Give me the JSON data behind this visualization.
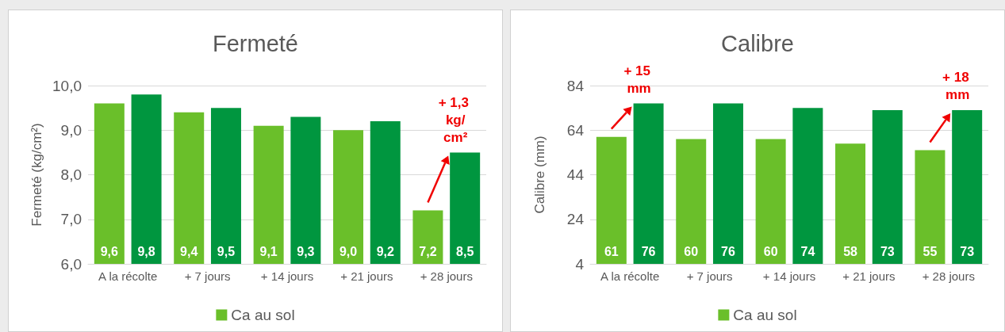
{
  "chart_data": [
    {
      "type": "bar",
      "title": "Fermeté",
      "ylabel": "Fermeté (kg/cm²)",
      "categories": [
        "A la récolte",
        "+ 7 jours",
        "+ 14 jours",
        "+ 21 jours",
        "+ 28 jours"
      ],
      "series": [
        {
          "name": "Ca au sol",
          "color": "#6abf2a",
          "values": [
            9.6,
            9.4,
            9.1,
            9.0,
            7.2
          ],
          "value_labels": [
            "9,6",
            "9,4",
            "9,1",
            "9,0",
            "7,2"
          ]
        },
        {
          "color": "#00963f",
          "values": [
            9.8,
            9.5,
            9.3,
            9.2,
            8.5
          ],
          "value_labels": [
            "9,8",
            "9,5",
            "9,3",
            "9,2",
            "8,5"
          ]
        }
      ],
      "ylim": [
        6,
        10
      ],
      "yticks": [
        {
          "value": 6,
          "label": "6,0"
        },
        {
          "value": 7,
          "label": "7,0"
        },
        {
          "value": 8,
          "label": "8,0"
        },
        {
          "value": 9,
          "label": "9,0"
        },
        {
          "value": 10,
          "label": "10,0"
        }
      ],
      "grid": "y",
      "legend": "bottom",
      "annotations": [
        "+ 1,3 kg/cm²"
      ]
    },
    {
      "type": "bar",
      "title": "Calibre",
      "ylabel": "Calibre (mm)",
      "categories": [
        "A la récolte",
        "+ 7 jours",
        "+ 14 jours",
        "+ 21 jours",
        "+ 28 jours"
      ],
      "series": [
        {
          "name": "Ca au sol",
          "color": "#6abf2a",
          "values": [
            61,
            60,
            60,
            58,
            55
          ]
        },
        {
          "color": "#00963f",
          "values": [
            76,
            76,
            74,
            73,
            73
          ]
        }
      ],
      "ylim": [
        4,
        84
      ],
      "yticks": [
        4,
        24,
        44,
        64,
        84
      ],
      "data_labels": true,
      "grid": "y",
      "legend": "bottom",
      "annotations": [
        "+ 15 mm",
        "+ 18 mm"
      ]
    }
  ]
}
